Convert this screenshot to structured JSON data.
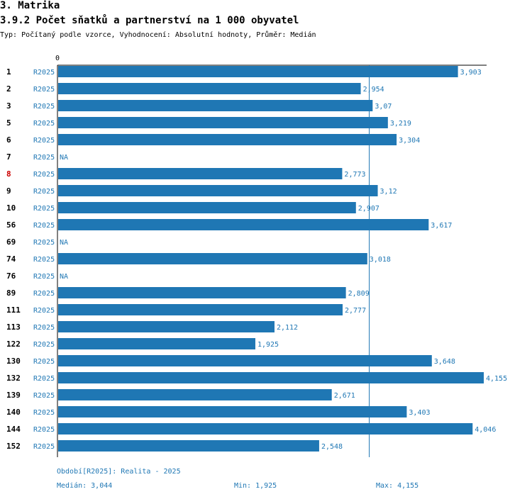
{
  "header": {
    "section_title": "3. Matrika",
    "chart_title": "3.9.2 Počet sňatků a partnerství na 1 000 obyvatel",
    "subtitle": "Typ: Počítaný podle vzorce, Vyhodnocení: Absolutní hodnoty, Průměr: Medián"
  },
  "chart_data": {
    "type": "bar",
    "orientation": "horizontal",
    "title": "3.9.2 Počet sňatků a partnerství na 1 000 obyvatel",
    "zero_label": "0",
    "xlim": [
      0,
      4.155
    ],
    "median": 3.044,
    "period": "R2025",
    "highlight_color": "#cc0000",
    "bar_color": "#1f77b4",
    "categories": [
      "1",
      "2",
      "3",
      "5",
      "6",
      "7",
      "8",
      "9",
      "10",
      "56",
      "69",
      "74",
      "76",
      "89",
      "111",
      "113",
      "122",
      "130",
      "132",
      "139",
      "140",
      "144",
      "152"
    ],
    "values": [
      3.903,
      2.954,
      3.07,
      3.219,
      3.304,
      null,
      2.773,
      3.12,
      2.907,
      3.617,
      null,
      3.018,
      null,
      2.809,
      2.777,
      2.112,
      1.925,
      3.648,
      4.155,
      2.671,
      3.403,
      4.046,
      2.548
    ],
    "value_labels": [
      "3,903",
      "2,954",
      "3,07",
      "3,219",
      "3,304",
      "NA",
      "2,773",
      "3,12",
      "2,907",
      "3,617",
      "NA",
      "3,018",
      "NA",
      "2,809",
      "2,777",
      "2,112",
      "1,925",
      "3,648",
      "4,155",
      "2,671",
      "3,403",
      "4,046",
      "2,548"
    ],
    "highlighted": [
      "8"
    ]
  },
  "footer": {
    "period_note": "Období[R2025]: Realita - 2025",
    "median_label": "Medián: 3,044",
    "min_label": "Min: 1,925",
    "max_label": "Max: 4,155"
  }
}
